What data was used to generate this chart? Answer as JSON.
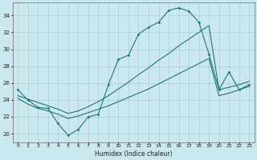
{
  "xlabel": "Humidex (Indice chaleur)",
  "xlim": [
    -0.5,
    23.5
  ],
  "ylim": [
    19,
    35.5
  ],
  "yticks": [
    20,
    22,
    24,
    26,
    28,
    30,
    32,
    34
  ],
  "xticks": [
    0,
    1,
    2,
    3,
    4,
    5,
    6,
    7,
    8,
    9,
    10,
    11,
    12,
    13,
    14,
    15,
    16,
    17,
    18,
    19,
    20,
    21,
    22,
    23
  ],
  "bg_color": "#cce8ef",
  "grid_color": "#aacdd8",
  "line_color": "#1e7575",
  "series": {
    "line1_x": [
      0,
      1,
      2,
      3,
      4,
      5,
      6,
      7,
      8,
      9,
      10,
      11,
      12,
      13,
      14,
      15,
      16,
      17,
      18,
      19,
      20,
      21,
      22,
      23
    ],
    "line1_y": [
      25.2,
      24.0,
      23.1,
      23.0,
      21.2,
      19.8,
      20.5,
      22.0,
      22.3,
      25.8,
      28.8,
      29.3,
      31.8,
      32.6,
      33.2,
      34.6,
      34.9,
      34.5,
      33.2,
      29.4,
      25.2,
      27.3,
      25.2,
      25.8
    ],
    "line2_x": [
      0,
      1,
      2,
      3,
      4,
      5,
      6,
      7,
      8,
      9,
      10,
      11,
      12,
      13,
      14,
      15,
      16,
      17,
      18,
      19,
      20,
      21,
      22,
      23
    ],
    "line2_y": [
      24.2,
      23.5,
      23.0,
      22.7,
      22.3,
      21.8,
      22.1,
      22.5,
      22.9,
      23.3,
      23.8,
      24.3,
      24.8,
      25.3,
      25.9,
      26.5,
      27.1,
      27.7,
      28.3,
      28.9,
      24.5,
      24.8,
      25.2,
      25.6
    ],
    "line3_x": [
      0,
      1,
      2,
      3,
      4,
      5,
      6,
      7,
      8,
      9,
      10,
      11,
      12,
      13,
      14,
      15,
      16,
      17,
      18,
      19,
      20,
      21,
      22,
      23
    ],
    "line3_y": [
      24.5,
      24.1,
      23.7,
      23.3,
      22.9,
      22.4,
      22.7,
      23.2,
      23.8,
      24.5,
      25.3,
      26.1,
      27.0,
      27.8,
      28.7,
      29.5,
      30.4,
      31.2,
      32.0,
      32.8,
      25.2,
      25.5,
      25.8,
      26.2
    ]
  }
}
